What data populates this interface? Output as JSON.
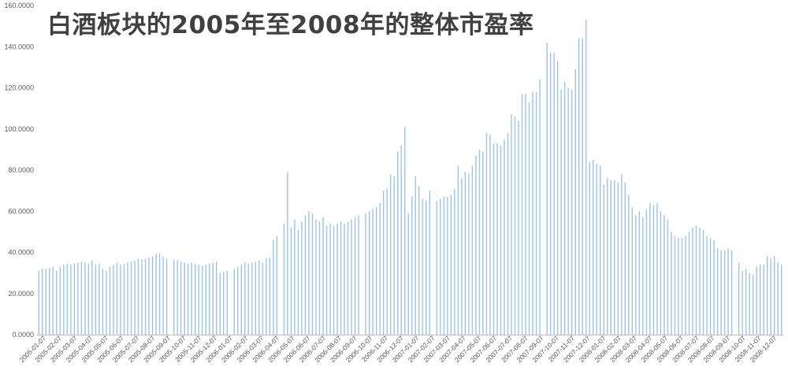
{
  "chart_data": {
    "type": "bar",
    "title": "白酒板块的2005年至2008年的整体市盈率",
    "xlabel": "",
    "ylabel": "",
    "ylim": [
      0,
      160
    ],
    "y_ticks": [
      "0.0000",
      "20.0000",
      "40.0000",
      "60.0000",
      "80.0000",
      "100.0000",
      "120.0000",
      "140.0000",
      "160.0000"
    ],
    "x_tick_labels": [
      "2005-01-07",
      "2005-02-07",
      "2005-03-07",
      "2005-04-07",
      "2005-05-07",
      "2005-06-07",
      "2005-07-07",
      "2005-08-07",
      "2005-09-07",
      "2005-10-07",
      "2005-11-07",
      "2005-12-07",
      "2006-01-07",
      "2006-02-07",
      "2006-03-07",
      "2006-04-07",
      "2006-05-07",
      "2006-06-07",
      "2006-07-07",
      "2006-08-07",
      "2006-09-07",
      "2006-10-07",
      "2006-11-07",
      "2006-12-07",
      "2007-01-07",
      "2007-02-07",
      "2007-03-07",
      "2007-04-07",
      "2007-05-07",
      "2007-06-07",
      "2007-07-07",
      "2007-08-07",
      "2007-09-07",
      "2007-10-07",
      "2007-11-07",
      "2007-12-07",
      "2008-01-07",
      "2008-02-07",
      "2008-03-07",
      "2008-04-07",
      "2008-05-07",
      "2008-06-07",
      "2008-07-07",
      "2008-08-07",
      "2008-09-07",
      "2008-10-07",
      "2008-11-07",
      "2008-12-07"
    ],
    "bar_color": "#9dc3e6",
    "grid": false,
    "legend": "none",
    "values": [
      31,
      32,
      32,
      32.5,
      33,
      31,
      33,
      34,
      34.5,
      34,
      34.5,
      35,
      35.5,
      35,
      34.5,
      36,
      34,
      34.5,
      32,
      31,
      33,
      34,
      35,
      34,
      34.5,
      35,
      35.5,
      36,
      37,
      36.5,
      37,
      37.5,
      38,
      39,
      39.5,
      38,
      37,
      0,
      36.5,
      36,
      35.5,
      35,
      34.5,
      35,
      34.5,
      34,
      33.5,
      34,
      34.5,
      35,
      35.5,
      30,
      30.5,
      31,
      0,
      32,
      33,
      34,
      35,
      34.5,
      35,
      35.5,
      36,
      35,
      37,
      37.5,
      46,
      48,
      0,
      54,
      79,
      52,
      56,
      51,
      55,
      58,
      60,
      59,
      56,
      55,
      57,
      53,
      54,
      53,
      54,
      55,
      54,
      55,
      56,
      57,
      58,
      0,
      59,
      60,
      61,
      62,
      64,
      70,
      71,
      78,
      77,
      89,
      92,
      101,
      59,
      67,
      77,
      72,
      66,
      65,
      70,
      0,
      65,
      66,
      67,
      67,
      68,
      71,
      82,
      76,
      79,
      78,
      82,
      87,
      90,
      89,
      98,
      97,
      93,
      93,
      92,
      95,
      98,
      107,
      106,
      104,
      117,
      117,
      113,
      118,
      118,
      124,
      0,
      142,
      137,
      137,
      133,
      119,
      123,
      120,
      119,
      129,
      144,
      144,
      153,
      84,
      85,
      83,
      82,
      73,
      76,
      75,
      75,
      74,
      78,
      74,
      68,
      62,
      58,
      60,
      57,
      61,
      64,
      63,
      64,
      60,
      58,
      56,
      50,
      48,
      47,
      47,
      48,
      50,
      52,
      53,
      52,
      51,
      48,
      47,
      46,
      42,
      41,
      41,
      42,
      41,
      0,
      35,
      31,
      32,
      30,
      29,
      33,
      34,
      34,
      38,
      37,
      38,
      35,
      34
    ]
  }
}
